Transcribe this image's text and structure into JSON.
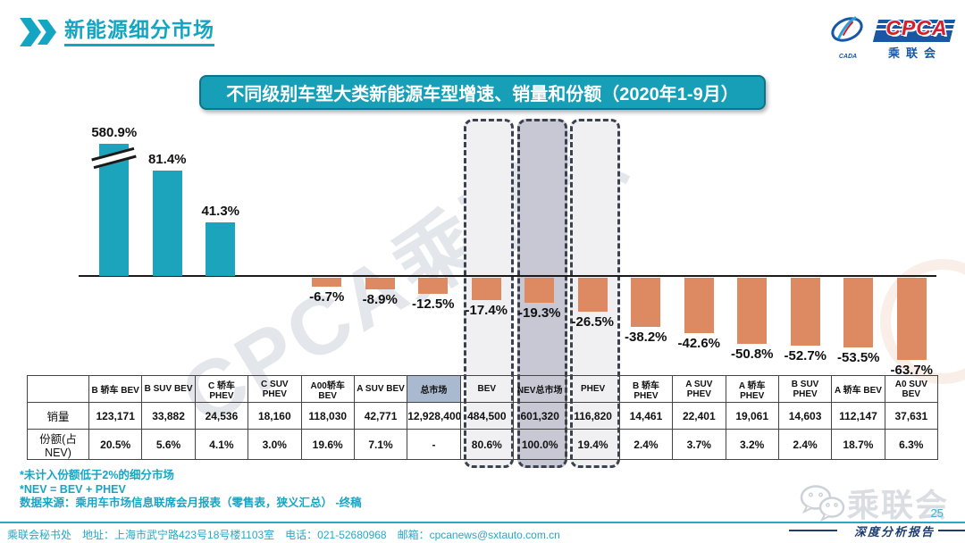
{
  "header": {
    "title": "新能源细分市场"
  },
  "logo": {
    "brand": "CPCA",
    "org": "乘联会",
    "emblem_caption": "CADA"
  },
  "chart_data": {
    "type": "bar",
    "title": "不同级别车型大类新能源车型增速、销量和份额（2020年1-9月）",
    "unit": "%",
    "baseline": 0,
    "grid": false,
    "legend": "none",
    "axis_break_on_first_bar": true,
    "bar_colors": {
      "positive": "#1ba4bc",
      "negative": "#dd8a63"
    },
    "highlighted_columns": [
      "BEV",
      "NEV总市场",
      "PHEV"
    ],
    "columns": [
      {
        "label": "B 轿车 BEV",
        "growth": 580.9,
        "growth_label": "580.9%",
        "sales": "123,171",
        "share": "20.5%",
        "clipped": true
      },
      {
        "label": "B SUV BEV",
        "growth": 81.4,
        "growth_label": "81.4%",
        "sales": "33,882",
        "share": "5.6%"
      },
      {
        "label": "C 轿车 PHEV",
        "growth": 41.3,
        "growth_label": "41.3%",
        "sales": "24,536",
        "share": "4.1%"
      },
      {
        "label": "C SUV PHEV",
        "growth": null,
        "growth_label": "",
        "sales": "18,160",
        "share": "3.0%"
      },
      {
        "label": "A00轿车 BEV",
        "growth": -6.7,
        "growth_label": "-6.7%",
        "sales": "118,030",
        "share": "19.6%"
      },
      {
        "label": "A SUV BEV",
        "growth": -8.9,
        "growth_label": "-8.9%",
        "sales": "42,771",
        "share": "7.1%"
      },
      {
        "label": "总市场",
        "growth": -12.5,
        "growth_label": "-12.5%",
        "sales": "12,928,400",
        "share": "-",
        "total_bg": true
      },
      {
        "label": "BEV",
        "growth": -17.4,
        "growth_label": "-17.4%",
        "sales": "484,500",
        "share": "80.6%",
        "highlight": "light"
      },
      {
        "label": "NEV总市场",
        "growth": -19.3,
        "growth_label": "-19.3%",
        "sales": "601,320",
        "share": "100.0%",
        "highlight": "dark"
      },
      {
        "label": "PHEV",
        "growth": -26.5,
        "growth_label": "-26.5%",
        "sales": "116,820",
        "share": "19.4%",
        "highlight": "light"
      },
      {
        "label": "B 轿车 PHEV",
        "growth": -38.2,
        "growth_label": "-38.2%",
        "sales": "14,461",
        "share": "2.4%"
      },
      {
        "label": "A SUV PHEV",
        "growth": -42.6,
        "growth_label": "-42.6%",
        "sales": "22,401",
        "share": "3.7%"
      },
      {
        "label": "A 轿车 PHEV",
        "growth": -50.8,
        "growth_label": "-50.8%",
        "sales": "19,061",
        "share": "3.2%"
      },
      {
        "label": "B SUV PHEV",
        "growth": -52.7,
        "growth_label": "-52.7%",
        "sales": "14,603",
        "share": "2.4%"
      },
      {
        "label": "A 轿车 BEV",
        "growth": -53.5,
        "growth_label": "-53.5%",
        "sales": "112,147",
        "share": "18.7%"
      },
      {
        "label": "A0 SUV BEV",
        "growth": -63.7,
        "growth_label": "-63.7%",
        "sales": "37,631",
        "share": "6.3%"
      }
    ]
  },
  "table": {
    "row_labels": [
      "销量",
      "份额(占NEV)"
    ]
  },
  "notes": {
    "line1": "*未计入份额低于2%的细分市场",
    "line2": "*NEV = BEV + PHEV",
    "line3": "数据来源：乘用车市场信息联席会月报表（零售表，狭义汇总） -终稿"
  },
  "footer": {
    "text": "乘联会秘书处　地址：上海市武宁路423号18号楼1103室　电话：021-52680968　邮箱：cpcanews@sxtauto.com.cn"
  },
  "bottom_right": {
    "watermark_text": "乘联会",
    "page_number": "25",
    "tagline": "深度分析报告"
  },
  "watermarks": {
    "diagonal": "CPCA乘联会"
  }
}
